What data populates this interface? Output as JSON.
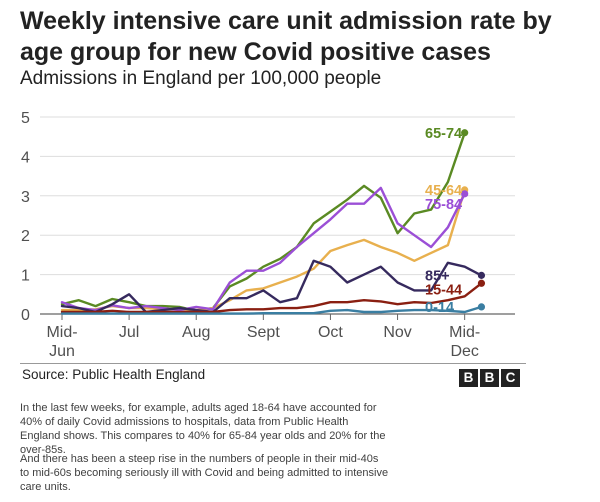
{
  "header": {
    "title": "Weekly intensive care unit admission rate by age group for new Covid positive cases",
    "subtitle": "Admissions in England per 100,000 people"
  },
  "footer": {
    "source": "Source: Public Health England",
    "logo_letters": [
      "B",
      "B",
      "C"
    ]
  },
  "article": {
    "paragraph_1": "In the last few weeks, for example, adults aged 18-64 have accounted for 40% of daily Covid admissions to hospitals, data from Public Health England shows. This compares to 40% for 65-84 year olds and 20% for the over-85s.",
    "paragraph_2": "And there has been a steep rise in the numbers of people in their mid-40s to mid-60s becoming seriously ill with Covid and being admitted to intensive care units."
  },
  "chart_data": {
    "type": "line",
    "title": "Weekly intensive care unit admission rate by age group for new Covid positive cases",
    "subtitle": "Admissions in England per 100,000 people",
    "xlabel": "",
    "ylabel": "",
    "xlim": [
      0,
      27
    ],
    "ylim": [
      0,
      5
    ],
    "y_ticks": [
      0,
      1,
      2,
      3,
      4,
      5
    ],
    "x_ticks": [
      {
        "x": 0,
        "line1": "Mid-",
        "line2": "Jun"
      },
      {
        "x": 4,
        "line1": "Jul",
        "line2": ""
      },
      {
        "x": 8,
        "line1": "Aug",
        "line2": ""
      },
      {
        "x": 12,
        "line1": "Sept",
        "line2": ""
      },
      {
        "x": 16,
        "line1": "Oct",
        "line2": ""
      },
      {
        "x": 20,
        "line1": "Nov",
        "line2": ""
      },
      {
        "x": 24,
        "line1": "Mid-",
        "line2": "Dec"
      }
    ],
    "grid": true,
    "legend": "inline labels at line ends",
    "x": [
      0,
      1,
      2,
      3,
      4,
      5,
      6,
      7,
      8,
      9,
      10,
      11,
      12,
      13,
      14,
      15,
      16,
      17,
      18,
      19,
      20,
      21,
      22,
      23,
      24,
      25
    ],
    "series": [
      {
        "name": "65-74",
        "color": "#5a8a23",
        "values": [
          0.25,
          0.35,
          0.2,
          0.38,
          0.3,
          0.2,
          0.2,
          0.18,
          0.08,
          0.15,
          0.7,
          0.9,
          1.2,
          1.4,
          1.7,
          2.3,
          2.6,
          2.9,
          3.25,
          2.95,
          2.05,
          2.55,
          2.65,
          3.35,
          4.6,
          null
        ]
      },
      {
        "name": "45-64",
        "color": "#e8b04e",
        "values": [
          0.1,
          0.1,
          0.12,
          0.2,
          0.15,
          0.15,
          0.12,
          0.12,
          0.1,
          0.15,
          0.35,
          0.6,
          0.65,
          0.8,
          0.95,
          1.15,
          1.6,
          1.75,
          1.88,
          1.7,
          1.55,
          1.35,
          1.55,
          1.75,
          3.15,
          null
        ]
      },
      {
        "name": "75-84",
        "color": "#9b4fd6",
        "values": [
          0.3,
          0.15,
          0.1,
          0.22,
          0.15,
          0.2,
          0.15,
          0.1,
          0.18,
          0.12,
          0.8,
          1.1,
          1.1,
          1.3,
          1.7,
          2.05,
          2.4,
          2.8,
          2.8,
          3.2,
          2.3,
          2.0,
          1.7,
          2.2,
          3.05,
          null
        ]
      },
      {
        "name": "85+",
        "color": "#362a5e",
        "values": [
          0.2,
          0.15,
          0.05,
          0.25,
          0.5,
          0.05,
          0.1,
          0.15,
          0.1,
          0.05,
          0.4,
          0.4,
          0.6,
          0.3,
          0.4,
          1.35,
          1.2,
          0.8,
          1.0,
          1.2,
          0.8,
          0.6,
          0.6,
          1.3,
          1.2,
          0.98
        ]
      },
      {
        "name": "15-44",
        "color": "#8a1f11",
        "values": [
          0.05,
          0.05,
          0.05,
          0.08,
          0.05,
          0.05,
          0.05,
          0.05,
          0.05,
          0.05,
          0.1,
          0.12,
          0.12,
          0.15,
          0.15,
          0.2,
          0.3,
          0.3,
          0.35,
          0.32,
          0.25,
          0.3,
          0.28,
          0.35,
          0.45,
          0.78
        ]
      },
      {
        "name": "0-14",
        "color": "#3a7ea2",
        "values": [
          0.01,
          0.01,
          0.01,
          0.01,
          0.01,
          0.01,
          0.01,
          0.01,
          0.01,
          0.01,
          0.01,
          0.01,
          0.02,
          0.02,
          0.02,
          0.02,
          0.08,
          0.1,
          0.05,
          0.05,
          0.08,
          0.1,
          0.1,
          0.08,
          0.05,
          0.18
        ]
      }
    ]
  }
}
